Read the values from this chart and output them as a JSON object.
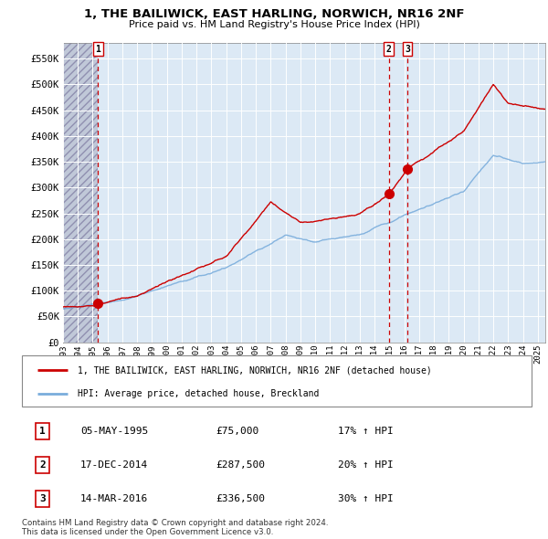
{
  "title": "1, THE BAILIWICK, EAST HARLING, NORWICH, NR16 2NF",
  "subtitle": "Price paid vs. HM Land Registry's House Price Index (HPI)",
  "ylim": [
    0,
    580000
  ],
  "yticks": [
    0,
    50000,
    100000,
    150000,
    200000,
    250000,
    300000,
    350000,
    400000,
    450000,
    500000,
    550000
  ],
  "ytick_labels": [
    "£0",
    "£50K",
    "£100K",
    "£150K",
    "£200K",
    "£250K",
    "£300K",
    "£350K",
    "£400K",
    "£450K",
    "£500K",
    "£550K"
  ],
  "sale_dates_num": [
    1995.36,
    2014.96,
    2016.21
  ],
  "sale_prices": [
    75000,
    287500,
    336500
  ],
  "sale_labels": [
    "1",
    "2",
    "3"
  ],
  "red_line_color": "#cc0000",
  "blue_line_color": "#7aaddc",
  "vline_color": "#cc0000",
  "marker_color": "#cc0000",
  "legend_label_red": "1, THE BAILIWICK, EAST HARLING, NORWICH, NR16 2NF (detached house)",
  "legend_label_blue": "HPI: Average price, detached house, Breckland",
  "table_rows": [
    [
      "1",
      "05-MAY-1995",
      "£75,000",
      "17% ↑ HPI"
    ],
    [
      "2",
      "17-DEC-2014",
      "£287,500",
      "20% ↑ HPI"
    ],
    [
      "3",
      "14-MAR-2016",
      "£336,500",
      "30% ↑ HPI"
    ]
  ],
  "footnote": "Contains HM Land Registry data © Crown copyright and database right 2024.\nThis data is licensed under the Open Government Licence v3.0.",
  "chart_bg": "#dce9f5",
  "hatch_color": "#c8c8d8",
  "grid_color": "#ffffff",
  "xmin": 1993.0,
  "xmax": 2025.5,
  "xtick_start": 1993,
  "xtick_end": 2025
}
